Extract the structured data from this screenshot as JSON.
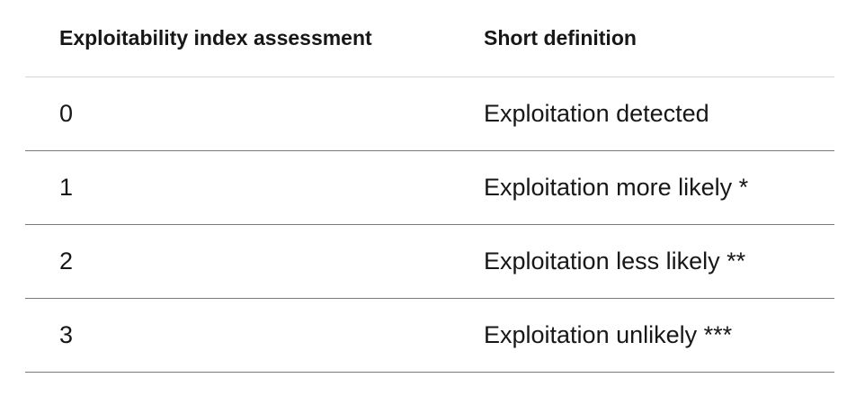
{
  "table": {
    "headers": [
      "Exploitability index assessment",
      "Short definition"
    ],
    "rows": [
      {
        "index": "0",
        "definition": "Exploitation detected"
      },
      {
        "index": "1",
        "definition": "Exploitation more likely *"
      },
      {
        "index": "2",
        "definition": "Exploitation less likely **"
      },
      {
        "index": "3",
        "definition": "Exploitation unlikely ***"
      }
    ]
  }
}
